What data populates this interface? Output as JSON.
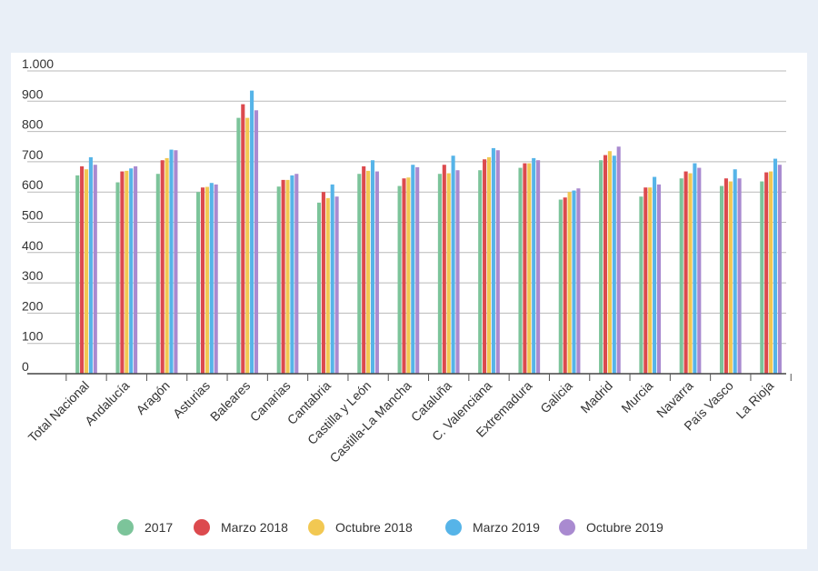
{
  "chart_data": {
    "type": "bar",
    "title": "",
    "xlabel": "",
    "ylabel": "",
    "ylim": [
      0,
      1000
    ],
    "yticks": [
      0,
      100,
      200,
      300,
      400,
      500,
      600,
      700,
      800,
      900,
      1000
    ],
    "ytick_labels": [
      "0",
      "100",
      "200",
      "300",
      "400",
      "500",
      "600",
      "700",
      "800",
      "900",
      "1.000"
    ],
    "grid": true,
    "legend_position": "bottom",
    "categories": [
      "Total Nacional",
      "Andalucía",
      "Aragón",
      "Asturias",
      "Baleares",
      "Canarias",
      "Cantabria",
      "Castilla y León",
      "Castilla-La Mancha",
      "Cataluña",
      "C. Valenciana",
      "Extremadura",
      "Galicia",
      "Madrid",
      "Murcia",
      "Navarra",
      "País Vasco",
      "La Rioja"
    ],
    "series": [
      {
        "name": "2017",
        "color": "#7cc49a",
        "values": [
          655,
          632,
          660,
          600,
          845,
          618,
          565,
          660,
          620,
          660,
          672,
          680,
          575,
          705,
          585,
          645,
          620,
          635
        ]
      },
      {
        "name": "Marzo 2018",
        "color": "#dc4a4e",
        "values": [
          685,
          668,
          705,
          615,
          890,
          640,
          600,
          685,
          645,
          690,
          708,
          695,
          582,
          722,
          615,
          668,
          645,
          665
        ]
      },
      {
        "name": "Octubre 2018",
        "color": "#f2c852",
        "values": [
          675,
          670,
          712,
          617,
          845,
          640,
          580,
          670,
          648,
          662,
          715,
          695,
          600,
          735,
          615,
          662,
          635,
          668
        ]
      },
      {
        "name": "Marzo 2019",
        "color": "#56b4e8",
        "values": [
          715,
          678,
          740,
          630,
          935,
          655,
          625,
          705,
          690,
          720,
          745,
          712,
          605,
          720,
          650,
          695,
          675,
          710
        ]
      },
      {
        "name": "Octubre 2019",
        "color": "#a98ad0",
        "values": [
          690,
          685,
          738,
          625,
          870,
          660,
          585,
          668,
          682,
          672,
          738,
          705,
          612,
          750,
          625,
          680,
          645,
          690
        ]
      }
    ]
  }
}
